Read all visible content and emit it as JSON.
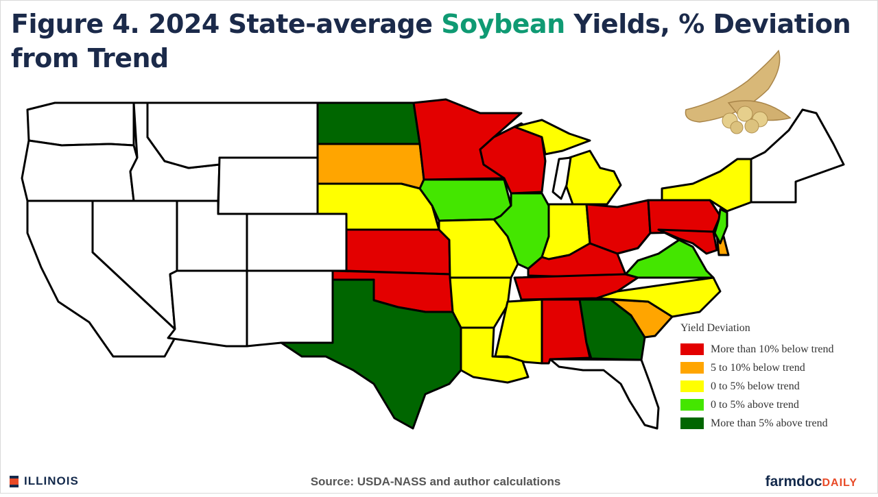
{
  "title": {
    "pre": "Figure 4. 2024 State-average ",
    "accent": "Soybean",
    "post": " Yields, % Deviation from Trend"
  },
  "colors": {
    "title": "#1b2a4a",
    "accent": "#0f9a73",
    "more_than_10_below": "#e30000",
    "5_to_10_below": "#ffa500",
    "0_to_5_below": "#ffff00",
    "0_to_5_above": "#44e600",
    "more_than_5_above": "#006600",
    "no_data": "#ffffff"
  },
  "legend": {
    "title": "Yield Deviation",
    "items": [
      {
        "label": "More than 10% below trend",
        "color": "#e30000"
      },
      {
        "label": "5 to 10% below trend",
        "color": "#ffa500"
      },
      {
        "label": "0 to 5% below trend",
        "color": "#ffff00"
      },
      {
        "label": "0 to 5% above trend",
        "color": "#44e600"
      },
      {
        "label": "More than 5% above trend",
        "color": "#006600"
      }
    ]
  },
  "state_categories": {
    "Washington": "none",
    "Oregon": "none",
    "California": "none",
    "Idaho": "none",
    "Nevada": "none",
    "Utah": "none",
    "Arizona": "none",
    "Montana": "none",
    "Wyoming": "none",
    "Colorado": "none",
    "New Mexico": "none",
    "North Dakota": "more_than_5_above",
    "South Dakota": "5_to_10_below",
    "Nebraska": "0_to_5_below",
    "Kansas": "more_than_10_below",
    "Oklahoma": "more_than_10_below",
    "Texas": "more_than_5_above",
    "Minnesota": "more_than_10_below",
    "Iowa": "0_to_5_above",
    "Missouri": "0_to_5_below",
    "Arkansas": "0_to_5_below",
    "Louisiana": "0_to_5_below",
    "Wisconsin": "more_than_10_below",
    "Illinois": "0_to_5_above",
    "Michigan": "0_to_5_below",
    "Indiana": "0_to_5_below",
    "Ohio": "more_than_10_below",
    "Kentucky": "more_than_10_below",
    "Tennessee": "more_than_10_below",
    "Mississippi": "0_to_5_below",
    "Alabama": "more_than_10_below",
    "Georgia": "more_than_5_above",
    "Florida": "none",
    "South Carolina": "5_to_10_below",
    "North Carolina": "0_to_5_below",
    "Virginia": "0_to_5_above",
    "West Virginia": "none",
    "Maryland": "more_than_10_below",
    "Delaware": "5_to_10_below",
    "New Jersey": "0_to_5_above",
    "Pennsylvania": "more_than_10_below",
    "New York": "0_to_5_below",
    "New England": "none"
  },
  "footer": {
    "source": "Source: USDA-NASS and author calculations",
    "university": "ILLINOIS",
    "brand_main": "farmdoc",
    "brand_sub": "DAILY"
  }
}
